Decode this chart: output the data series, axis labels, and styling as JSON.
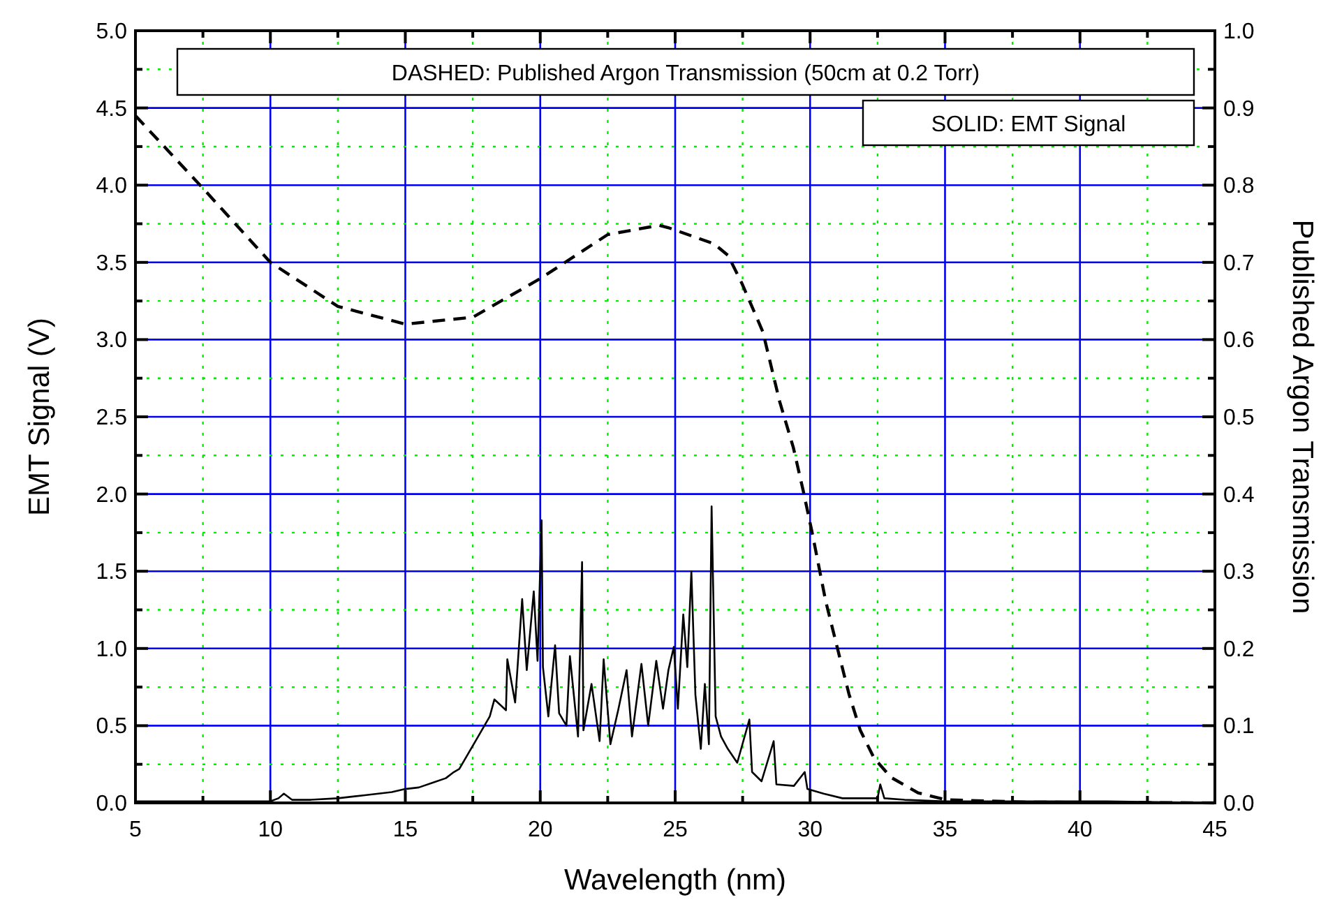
{
  "chart_data": {
    "type": "line",
    "xlabel": "Wavelength (nm)",
    "ylabel": "EMT Signal (V)",
    "y2label": "Published Argon Transmission",
    "annotations": [
      "DASHED: Published Argon Transmission (50cm at 0.2 Torr)",
      "SOLID: EMT Signal"
    ],
    "xlim": [
      5,
      45
    ],
    "xticks": [
      5,
      {
        "value": 7.5,
        "label": null
      },
      10,
      {
        "value": 12.5,
        "label": null
      },
      15,
      {
        "value": 17.5,
        "label": null
      },
      20,
      {
        "value": 22.5,
        "label": null
      },
      25,
      {
        "value": 27.5,
        "label": null
      },
      30,
      {
        "value": 32.5,
        "label": null
      },
      35,
      {
        "value": 37.5,
        "label": null
      },
      40,
      {
        "value": 42.5,
        "label": null
      },
      45
    ],
    "ylim": [
      0,
      5
    ],
    "yticks": [
      {
        "value": 0,
        "label": "0.0"
      },
      {
        "value": 0.25,
        "label": null
      },
      0.5,
      {
        "value": 0.75,
        "label": null
      },
      {
        "value": 1,
        "label": "1.0"
      },
      {
        "value": 1.25,
        "label": null
      },
      1.5,
      {
        "value": 1.75,
        "label": null
      },
      {
        "value": 2,
        "label": "2.0"
      },
      {
        "value": 2.25,
        "label": null
      },
      2.5,
      {
        "value": 2.75,
        "label": null
      },
      {
        "value": 3,
        "label": "3.0"
      },
      {
        "value": 3.25,
        "label": null
      },
      3.5,
      {
        "value": 3.75,
        "label": null
      },
      {
        "value": 4,
        "label": "4.0"
      },
      {
        "value": 4.25,
        "label": null
      },
      4.5,
      {
        "value": 4.75,
        "label": null
      },
      {
        "value": 5,
        "label": "5.0"
      }
    ],
    "y2lim": [
      0,
      1
    ],
    "y2ticks": [
      {
        "value": 0,
        "label": "0.0"
      },
      {
        "value": 0.05,
        "label": null
      },
      0.1,
      {
        "value": 0.15,
        "label": null
      },
      0.2,
      {
        "value": 0.25,
        "label": null
      },
      0.3,
      {
        "value": 0.35,
        "label": null
      },
      0.4,
      {
        "value": 0.45,
        "label": null
      },
      0.5,
      {
        "value": 0.55,
        "label": null
      },
      0.6,
      {
        "value": 0.65,
        "label": null
      },
      0.7,
      {
        "value": 0.75,
        "label": null
      },
      0.8,
      {
        "value": 0.85,
        "label": null
      },
      0.9,
      {
        "value": 0.95,
        "label": null
      },
      {
        "value": 1,
        "label": "1.0"
      }
    ],
    "grid": true,
    "series": [
      {
        "color": "#000000",
        "line_style": "solid",
        "x": [
          5,
          6,
          7,
          8,
          9,
          10,
          10.3,
          10.5,
          10.8,
          11.5,
          12.5,
          13.5,
          14.5,
          15,
          15.5,
          16,
          16.5,
          16.8,
          17.0,
          17.7,
          18.13,
          18.3,
          18.73,
          18.78,
          19.07,
          19.33,
          19.5,
          19.76,
          19.9,
          20.05,
          20.1,
          20.3,
          20.55,
          20.7,
          20.97,
          21.1,
          21.4,
          21.55,
          21.6,
          21.9,
          22.2,
          22.35,
          22.6,
          22.9,
          23.2,
          23.4,
          23.75,
          24.0,
          24.3,
          24.55,
          24.75,
          24.95,
          25.1,
          25.3,
          25.45,
          25.6,
          25.75,
          25.95,
          26.1,
          26.25,
          26.35,
          26.5,
          26.7,
          26.95,
          27.3,
          27.75,
          27.85,
          28.2,
          28.65,
          28.75,
          29.4,
          29.8,
          29.9,
          30.5,
          31.2,
          32.5,
          32.6,
          32.75,
          33.5,
          35,
          38,
          41,
          45
        ],
        "values": [
          0.01,
          0.01,
          0.01,
          0.01,
          0.01,
          0.01,
          0.03,
          0.06,
          0.02,
          0.02,
          0.03,
          0.05,
          0.07,
          0.09,
          0.1,
          0.13,
          0.16,
          0.2,
          0.22,
          0.43,
          0.56,
          0.67,
          0.6,
          0.93,
          0.65,
          1.32,
          0.86,
          1.37,
          0.92,
          1.83,
          0.88,
          0.56,
          1.02,
          0.58,
          0.5,
          0.95,
          0.43,
          1.56,
          0.47,
          0.77,
          0.4,
          0.93,
          0.38,
          0.61,
          0.86,
          0.43,
          0.9,
          0.5,
          0.92,
          0.61,
          0.86,
          1.01,
          0.61,
          1.22,
          0.88,
          1.5,
          0.7,
          0.35,
          0.77,
          0.38,
          1.92,
          0.56,
          0.43,
          0.35,
          0.26,
          0.54,
          0.2,
          0.14,
          0.4,
          0.12,
          0.11,
          0.2,
          0.09,
          0.06,
          0.03,
          0.03,
          0.12,
          0.03,
          0.02,
          0.01,
          0.01,
          0.01,
          0
        ]
      },
      {
        "color": "#000000",
        "line_style": "dashed",
        "axis": "y2",
        "x": [
          5,
          7.5,
          10,
          12.5,
          15,
          17.5,
          20,
          22.5,
          24.4,
          24.74,
          26.44,
          26.96,
          27.47,
          28.25,
          28.87,
          29.38,
          29.74,
          30.07,
          30.58,
          31.0,
          31.44,
          31.86,
          32.37,
          33.0,
          34.0,
          35.05,
          38,
          45
        ],
        "values": [
          0.89,
          0.796,
          0.7,
          0.643,
          0.62,
          0.629,
          0.679,
          0.736,
          0.748,
          0.745,
          0.724,
          0.709,
          0.673,
          0.61,
          0.52,
          0.46,
          0.405,
          0.351,
          0.261,
          0.202,
          0.141,
          0.094,
          0.058,
          0.033,
          0.013,
          0.004,
          0.001,
          0
        ]
      }
    ]
  }
}
